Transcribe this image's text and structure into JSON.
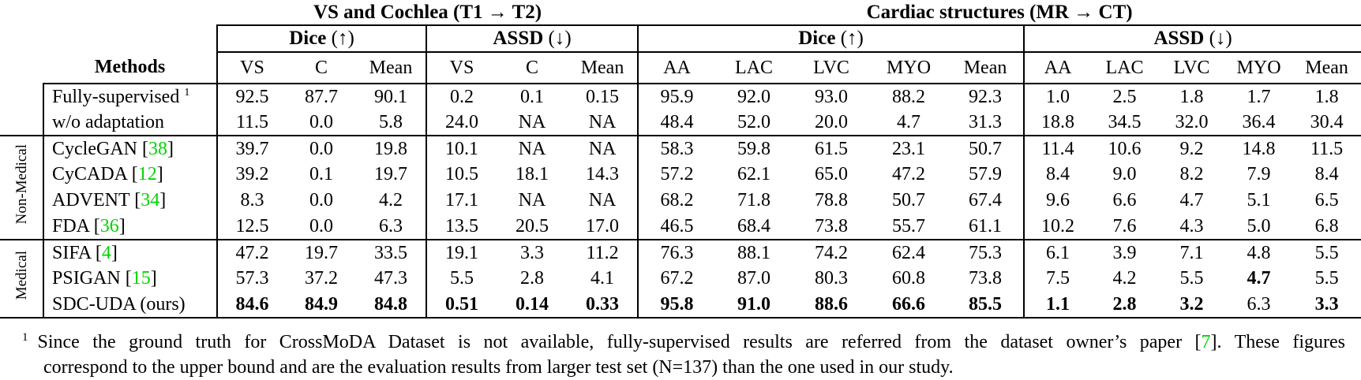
{
  "table": {
    "section_titles": [
      "VS and Cochlea (T1 → T2)",
      "Cardiac structures (MR → CT)"
    ],
    "metric_headers": [
      {
        "name": "Dice",
        "arrow": " (↑)"
      },
      {
        "name": "ASSD",
        "arrow": " (↓)"
      },
      {
        "name": "Dice",
        "arrow": " (↑)"
      },
      {
        "name": "ASSD",
        "arrow": " (↓)"
      }
    ],
    "methods_header": "Methods",
    "subheaders": [
      "VS",
      "C",
      "Mean",
      "VS",
      "C",
      "Mean",
      "AA",
      "LAC",
      "LVC",
      "MYO",
      "Mean",
      "AA",
      "LAC",
      "LVC",
      "MYO",
      "Mean"
    ],
    "groups": [
      {
        "label": "",
        "rows": [
          {
            "method": "Fully-supervised",
            "sup": "1",
            "cite": "",
            "suffix": "",
            "bold": [],
            "values": [
              "92.5",
              "87.7",
              "90.1",
              "0.2",
              "0.1",
              "0.15",
              "95.9",
              "92.0",
              "93.0",
              "88.2",
              "92.3",
              "1.0",
              "2.5",
              "1.8",
              "1.7",
              "1.8"
            ]
          },
          {
            "method": "w/o adaptation",
            "sup": "",
            "cite": "",
            "suffix": "",
            "bold": [],
            "values": [
              "11.5",
              "0.0",
              "5.8",
              "24.0",
              "NA",
              "NA",
              "48.4",
              "52.0",
              "20.0",
              "4.7",
              "31.3",
              "18.8",
              "34.5",
              "32.0",
              "36.4",
              "30.4"
            ]
          }
        ]
      },
      {
        "label": "Non-Medical",
        "rows": [
          {
            "method": "CycleGAN",
            "sup": "",
            "cite": "38",
            "suffix": "",
            "bold": [],
            "values": [
              "39.7",
              "0.0",
              "19.8",
              "10.1",
              "NA",
              "NA",
              "58.3",
              "59.8",
              "61.5",
              "23.1",
              "50.7",
              "11.4",
              "10.6",
              "9.2",
              "14.8",
              "11.5"
            ]
          },
          {
            "method": "CyCADA",
            "sup": "",
            "cite": "12",
            "suffix": "",
            "bold": [],
            "values": [
              "39.2",
              "0.1",
              "19.7",
              "10.5",
              "18.1",
              "14.3",
              "57.2",
              "62.1",
              "65.0",
              "47.2",
              "57.9",
              "8.4",
              "9.0",
              "8.2",
              "7.9",
              "8.4"
            ]
          },
          {
            "method": "ADVENT",
            "sup": "",
            "cite": "34",
            "suffix": "",
            "bold": [],
            "values": [
              "8.3",
              "0.0",
              "4.2",
              "17.1",
              "NA",
              "NA",
              "68.2",
              "71.8",
              "78.8",
              "50.7",
              "67.4",
              "9.6",
              "6.6",
              "4.7",
              "5.1",
              "6.5"
            ]
          },
          {
            "method": "FDA",
            "sup": "",
            "cite": "36",
            "suffix": "",
            "bold": [],
            "values": [
              "12.5",
              "0.0",
              "6.3",
              "13.5",
              "20.5",
              "17.0",
              "46.5",
              "68.4",
              "73.8",
              "55.7",
              "61.1",
              "10.2",
              "7.6",
              "4.3",
              "5.0",
              "6.8"
            ]
          }
        ]
      },
      {
        "label": "Medical",
        "rows": [
          {
            "method": "SIFA",
            "sup": "",
            "cite": "4",
            "suffix": "",
            "bold": [],
            "values": [
              "47.2",
              "19.7",
              "33.5",
              "19.1",
              "3.3",
              "11.2",
              "76.3",
              "88.1",
              "74.2",
              "62.4",
              "75.3",
              "6.1",
              "3.9",
              "7.1",
              "4.8",
              "5.5"
            ]
          },
          {
            "method": "PSIGAN",
            "sup": "",
            "cite": "15",
            "suffix": "",
            "bold": [
              14
            ],
            "values": [
              "57.3",
              "37.2",
              "47.3",
              "5.5",
              "2.8",
              "4.1",
              "67.2",
              "87.0",
              "80.3",
              "60.8",
              "73.8",
              "7.5",
              "4.2",
              "5.5",
              "4.7",
              "5.5"
            ]
          },
          {
            "method": "SDC-UDA",
            "sup": "",
            "cite": "",
            "suffix": " (ours)",
            "bold": [
              0,
              1,
              2,
              3,
              4,
              5,
              6,
              7,
              8,
              9,
              10,
              11,
              12,
              13,
              15
            ],
            "values": [
              "84.6",
              "84.9",
              "84.8",
              "0.51",
              "0.14",
              "0.33",
              "95.8",
              "91.0",
              "88.6",
              "66.6",
              "85.5",
              "1.1",
              "2.8",
              "3.2",
              "6.3",
              "3.3"
            ]
          }
        ]
      }
    ]
  },
  "footnote": {
    "sup": "1",
    "line1_pre": "Since the ground truth for CrossMoDA Dataset is not available, fully-supervised results are referred from the dataset owner’s paper [",
    "cite": "7",
    "line1_post": "]. These figures",
    "line2": "correspond to the upper bound and are the evaluation results from larger test set (N=137) than the one used in our study."
  },
  "colors": {
    "citation_green": "#00d400",
    "text": "#000000",
    "background": "#ffffff"
  }
}
